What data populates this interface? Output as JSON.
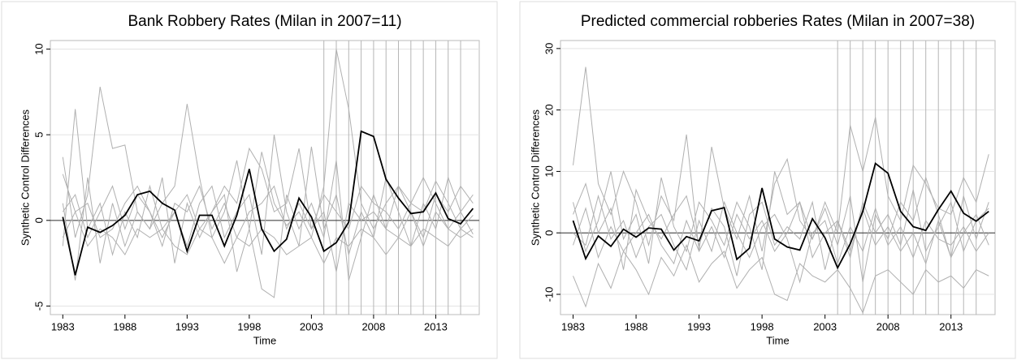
{
  "chart_data": [
    {
      "type": "line",
      "title": "Bank Robbery Rates (Milan in 2007=11)",
      "xlabel": "Time",
      "ylabel": "Synthetic Control Differences",
      "x": [
        1983,
        1984,
        1985,
        1986,
        1987,
        1988,
        1989,
        1990,
        1991,
        1992,
        1993,
        1994,
        1995,
        1996,
        1997,
        1998,
        1999,
        2000,
        2001,
        2002,
        2003,
        2004,
        2005,
        2006,
        2007,
        2008,
        2009,
        2010,
        2011,
        2012,
        2013,
        2014,
        2015,
        2016
      ],
      "xlim": [
        1982,
        2016.5
      ],
      "xticks": [
        1983,
        1988,
        1993,
        1998,
        2003,
        2008,
        2013
      ],
      "ylim": [
        -5.5,
        10.5
      ],
      "yticks": [
        -5,
        0,
        5,
        10
      ],
      "grid": true,
      "hline": 0,
      "xlines": [
        2004,
        2005,
        2006,
        2007,
        2008,
        2009,
        2010,
        2011,
        2012,
        2013,
        2014,
        2015
      ],
      "xline_color": "#b5b5b5",
      "series": [
        {
          "color": "#b0b0b0",
          "values": [
            3.7,
            -1,
            1.5,
            7.8,
            4.2,
            4.4,
            0.5,
            -0.5,
            1,
            2,
            6.8,
            2.5,
            -1,
            0.5,
            3.5,
            -0.5,
            4,
            1,
            -0.3,
            0.5,
            -1,
            2,
            10,
            6.5,
            1,
            -0.5,
            1,
            2,
            0.5,
            -1,
            1.5,
            0.5,
            2,
            1
          ]
        },
        {
          "color": "#b0b0b0",
          "values": [
            -1.5,
            6.5,
            -0.5,
            1,
            -2,
            0.5,
            -1,
            2,
            -0.5,
            0.5,
            -1.5,
            1,
            2,
            -1,
            0.5,
            1.5,
            -2,
            5,
            0.5,
            -1.5,
            4.3,
            -0.5,
            1.5,
            -2,
            0.5,
            -1,
            2.5,
            0.5,
            -1.5,
            1,
            -0.5,
            2.5,
            0.5,
            -0.8
          ]
        },
        {
          "color": "#b0b0b0",
          "values": [
            1,
            -3.5,
            2.5,
            -2.5,
            1,
            -1.5,
            0.5,
            -0.5,
            2.5,
            -2.5,
            1,
            -1,
            0.5,
            1.5,
            -3,
            -0.5,
            -4,
            -4.5,
            1.5,
            -0.5,
            1,
            -1,
            3.5,
            -3.5,
            -1,
            1.5,
            -0.5,
            -1,
            0.5,
            -1.5,
            0.5,
            -0.5,
            -1,
            -0.5
          ]
        },
        {
          "color": "#b0b0b0",
          "values": [
            0.5,
            1.5,
            -1,
            0.5,
            2,
            -0.5,
            1.5,
            0.5,
            -1.5,
            1,
            0.5,
            2,
            -0.5,
            1,
            -1,
            0.5,
            1,
            2,
            -0.5,
            1,
            -0.5,
            1.5,
            0.5,
            -0.5,
            2,
            1,
            0.5,
            -0.5,
            1,
            2.5,
            1,
            -0.5,
            0.5,
            1.5
          ]
        },
        {
          "color": "#b0b0b0",
          "values": [
            -1,
            0.5,
            -1.5,
            -0.5,
            -1,
            -2,
            -0.5,
            -1,
            -0.5,
            -1.5,
            -2,
            -0.5,
            -1,
            -2.5,
            -1,
            -1.5,
            -0.5,
            -1,
            -2,
            -1.5,
            -1,
            -2.5,
            -1,
            -1.5,
            -0.5,
            -1,
            -2,
            -1,
            -1.5,
            -0.5,
            -1,
            -1.5,
            -0.5,
            -1
          ]
        },
        {
          "color": "#b0b0b0",
          "values": [
            2.7,
            0.5,
            1,
            -1,
            -0.5,
            1,
            2,
            0.5,
            -1,
            0.5,
            1.5,
            -0.5,
            0.5,
            2,
            1,
            4.2,
            3,
            0.5,
            1,
            4.2,
            -0.5,
            0.5,
            -3,
            1,
            0,
            0.5,
            -0.5,
            2,
            1,
            0.5,
            2.3,
            1,
            -0.5,
            0.3
          ]
        },
        {
          "color": "#000000",
          "values": [
            0.2,
            -3.2,
            -0.4,
            -0.7,
            -0.3,
            0.3,
            1.5,
            1.7,
            1.0,
            0.6,
            -1.8,
            0.3,
            0.3,
            -1.5,
            0.3,
            3.0,
            -0.5,
            -1.8,
            -1.1,
            1.3,
            0.2,
            -1.8,
            -1.3,
            -0.1,
            5.2,
            4.9,
            2.4,
            1.3,
            0.4,
            0.5,
            1.6,
            0.1,
            -0.2,
            0.7
          ]
        }
      ]
    },
    {
      "type": "line",
      "title": "Predicted commercial robberies Rates (Milan in 2007=38)",
      "xlabel": "Time",
      "ylabel": "Synthetic Control Differences",
      "x": [
        1983,
        1984,
        1985,
        1986,
        1987,
        1988,
        1989,
        1990,
        1991,
        1992,
        1993,
        1994,
        1995,
        1996,
        1997,
        1998,
        1999,
        2000,
        2001,
        2002,
        2003,
        2004,
        2005,
        2006,
        2007,
        2008,
        2009,
        2010,
        2011,
        2012,
        2013,
        2014,
        2015,
        2016
      ],
      "xlim": [
        1982,
        2016.5
      ],
      "xticks": [
        1983,
        1988,
        1993,
        1998,
        2003,
        2008,
        2013
      ],
      "ylim": [
        -13.3,
        31.3
      ],
      "yticks": [
        -10,
        0,
        10,
        20,
        30
      ],
      "grid": true,
      "hline": 0,
      "xlines": [
        2004,
        2005,
        2006,
        2007,
        2008,
        2009,
        2010,
        2011,
        2012,
        2013,
        2014,
        2015
      ],
      "xline_color": "#b5b5b5",
      "series": [
        {
          "color": "#b0b0b0",
          "values": [
            11,
            27,
            8,
            3,
            10,
            5,
            -2,
            6,
            2,
            16,
            -3,
            14,
            4,
            -1,
            6,
            -3,
            8,
            12,
            2,
            -1,
            5,
            0,
            17.5,
            10,
            18.8,
            6,
            2,
            11,
            8,
            4,
            3,
            9,
            5,
            12.8
          ]
        },
        {
          "color": "#b0b0b0",
          "values": [
            -7,
            -12,
            -5,
            -9,
            -3,
            -6,
            -10,
            -4,
            -7,
            -2,
            -8,
            -5,
            -3,
            -9,
            -6,
            -4,
            -10,
            -11,
            -5,
            -7,
            -8,
            -6,
            -9,
            -13,
            -7,
            -6,
            -8,
            -10,
            -6,
            -8,
            -7,
            -9,
            -6,
            -7
          ]
        },
        {
          "color": "#b0b0b0",
          "values": [
            5,
            -3,
            2,
            10,
            -1,
            3,
            -5,
            9,
            1,
            -3,
            5,
            2,
            -2,
            5,
            1,
            -6,
            10,
            3,
            5,
            -1,
            4,
            -2,
            6,
            -8,
            3,
            -1,
            5,
            2,
            9,
            3,
            -4,
            6,
            -1,
            5
          ]
        },
        {
          "color": "#b0b0b0",
          "values": [
            -2,
            4,
            -4,
            1,
            -3,
            0,
            3,
            -2,
            -5,
            2,
            -3,
            1,
            -4,
            3,
            -1,
            2,
            -3,
            0,
            5,
            -4,
            0,
            2,
            -3,
            4,
            -2,
            1,
            -3,
            0,
            -5,
            2,
            -4,
            0,
            3,
            -2
          ]
        },
        {
          "color": "#b0b0b0",
          "values": [
            3,
            8,
            0,
            4,
            -6,
            7,
            2,
            -1,
            3,
            6,
            -2,
            4,
            1,
            -7,
            3,
            5,
            -2,
            1,
            -1,
            5,
            -6,
            2,
            -4,
            5,
            0,
            3,
            -2,
            7,
            -3,
            1,
            5,
            -3,
            2,
            4
          ]
        },
        {
          "color": "#b0b0b0",
          "values": [
            0,
            -2,
            6,
            -1,
            2,
            -4,
            1,
            3,
            -2,
            -6,
            2,
            -3,
            5,
            0,
            -4,
            1,
            3,
            -1,
            -8,
            0,
            2,
            -5,
            1,
            -3,
            4,
            -2,
            1,
            -4,
            2,
            -1,
            -2,
            1,
            -3,
            0
          ]
        },
        {
          "color": "#000000",
          "values": [
            2,
            -4.2,
            -0.5,
            -2.2,
            0.6,
            -0.7,
            0.8,
            0.6,
            -2.8,
            -0.6,
            -1.3,
            3.6,
            4.1,
            -4.3,
            -2.5,
            7.3,
            -1,
            -2.3,
            -2.8,
            2.3,
            -0.8,
            -5.7,
            -1.8,
            3.5,
            11.3,
            9.7,
            3.5,
            1,
            0.4,
            3.8,
            6.8,
            3.2,
            1.9,
            3.5
          ]
        }
      ]
    }
  ]
}
